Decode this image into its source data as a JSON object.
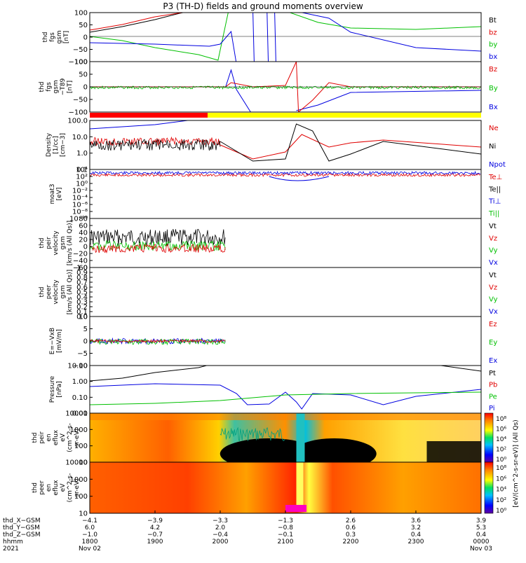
{
  "title": "P3 (TH-D) fields and ground moments overview",
  "colors": {
    "black": "#000000",
    "red": "#e00000",
    "green": "#00c000",
    "blue": "#0000e0",
    "yellow": "#ffff00",
    "bar_red": "#ff0000"
  },
  "panels": [
    {
      "id": "fgs-gsm",
      "ylabel": [
        "thd",
        "fgs",
        "gsm",
        "[nT]"
      ],
      "ticks": [
        "100",
        "50",
        "0",
        "−50",
        "−100"
      ],
      "legend": [
        {
          "label": "Bt",
          "color": "black"
        },
        {
          "label": "bz",
          "color": "red"
        },
        {
          "label": "by",
          "color": "green"
        },
        {
          "label": "bx",
          "color": "blue"
        }
      ]
    },
    {
      "id": "fgs-gsm-t89",
      "ylabel": [
        "thd",
        "fgs",
        "gsm",
        "−T89",
        "[nT]"
      ],
      "ticks": [
        "100",
        "50",
        "0",
        "−50",
        "−100"
      ],
      "legend": [
        {
          "label": "Bz",
          "color": "red"
        },
        {
          "label": "By",
          "color": "green"
        },
        {
          "label": "Bx",
          "color": "blue"
        }
      ]
    },
    {
      "id": "density",
      "ylabel": [
        "Density",
        "[1/cc]",
        "[cm−3]"
      ],
      "ticks": [
        "100.0",
        "10.0",
        "1.0",
        "0.1"
      ],
      "legend": [
        {
          "label": "Ne",
          "color": "red"
        },
        {
          "label": "Ni",
          "color": "black"
        },
        {
          "label": "Npot",
          "color": "blue"
        }
      ]
    },
    {
      "id": "temperature",
      "ylabel": [
        "moat3",
        "[eV]"
      ],
      "ticks": [
        "10⁴",
        "10²",
        "10⁰",
        "10⁻²",
        "10⁻⁴",
        "10⁻⁶",
        "10⁻⁸",
        "10⁻¹⁰"
      ],
      "legend": [
        {
          "label": "Te⊥",
          "color": "red"
        },
        {
          "label": "Te||",
          "color": "black"
        },
        {
          "label": "Ti⊥",
          "color": "blue"
        },
        {
          "label": "Ti||",
          "color": "green"
        }
      ]
    },
    {
      "id": "peir-velocity",
      "ylabel": [
        "thd",
        "peir",
        "velocity",
        "gsm",
        "[km/s (All Qs)]"
      ],
      "ticks": [
        "80",
        "60",
        "40",
        "20",
        "0",
        "−20",
        "−40",
        "−60"
      ],
      "legend": [
        {
          "label": "Vt",
          "color": "black"
        },
        {
          "label": "Vz",
          "color": "red"
        },
        {
          "label": "Vy",
          "color": "green"
        },
        {
          "label": "Vx",
          "color": "blue"
        }
      ]
    },
    {
      "id": "peer-velocity",
      "ylabel": [
        "thd",
        "peer",
        "velocity",
        "gsm",
        "[km/s (All Qs)]"
      ],
      "ticks": [
        "1.0",
        "0.9",
        "0.8",
        "0.7",
        "0.6",
        "0.5",
        "0.4",
        "0.3",
        "0.2",
        "0.1",
        "0.0"
      ],
      "legend": [
        {
          "label": "Vt",
          "color": "black"
        },
        {
          "label": "Vz",
          "color": "red"
        },
        {
          "label": "Vy",
          "color": "green"
        },
        {
          "label": "Vx",
          "color": "blue"
        }
      ]
    },
    {
      "id": "efield",
      "ylabel": [
        "E=−VxB",
        "[mV/m]"
      ],
      "ticks": [
        "10",
        "5",
        "0",
        "−5",
        "−10"
      ],
      "legend": [
        {
          "label": "Ez",
          "color": "red"
        },
        {
          "label": "Ey",
          "color": "green"
        },
        {
          "label": "Ex",
          "color": "blue"
        }
      ]
    },
    {
      "id": "pressure",
      "ylabel": [
        "Pressure",
        "[nPa]"
      ],
      "ticks": [
        "10.00",
        "1.00",
        "0.10",
        "0.01"
      ],
      "legend": [
        {
          "label": "Pt",
          "color": "black"
        },
        {
          "label": "Pb",
          "color": "red"
        },
        {
          "label": "Pe",
          "color": "green"
        },
        {
          "label": "Pi",
          "color": "blue"
        }
      ]
    },
    {
      "id": "peir-spec",
      "ylabel": [
        "thd",
        "peir",
        "en",
        "eflux",
        "eV",
        "(cm^2-s-",
        "sr-eV)"
      ],
      "ticks": [
        "10000",
        "1000",
        "100",
        "10"
      ]
    },
    {
      "id": "peer-spec",
      "ylabel": [
        "thd",
        "peer",
        "en",
        "eflux",
        "eV",
        "(cm^2-s-",
        "sr-eV)"
      ],
      "ticks": [
        "10000",
        "1000",
        "100",
        "10"
      ]
    }
  ],
  "colorbar": {
    "ticks": [
      "10⁸",
      "10⁶",
      "10⁴",
      "10²",
      "10⁰"
    ],
    "label": "[eV/(cm^2-s-sr-eV)] (All Qs)"
  },
  "xaxis": {
    "row_labels": [
      "thd_X−GSM",
      "thd_Y−GSM",
      "thd_Z−GSM",
      "hhmm",
      "2021"
    ],
    "columns": [
      {
        "values": [
          "−4.1",
          "6.0",
          "−1.0",
          "1800",
          "Nov 02"
        ]
      },
      {
        "values": [
          "−3.9",
          "4.2",
          "−0.7",
          "1900",
          ""
        ]
      },
      {
        "values": [
          "−3.3",
          "2.0",
          "−0.4",
          "2000",
          ""
        ]
      },
      {
        "values": [
          "−1.3",
          "−0.8",
          "−0.1",
          "2100",
          ""
        ]
      },
      {
        "values": [
          "2.6",
          "0.6",
          "0.3",
          "2200",
          ""
        ]
      },
      {
        "values": [
          "3.6",
          "3.2",
          "0.4",
          "2300",
          ""
        ]
      },
      {
        "values": [
          "3.9",
          "5.3",
          "0.4",
          "0000",
          "Nov 03"
        ]
      }
    ]
  },
  "chart_data": {
    "type": "line",
    "title": "P3 (TH-D) fields and ground moments overview",
    "x_times": [
      "1800",
      "1900",
      "2000",
      "2100",
      "2200",
      "2300",
      "0000"
    ],
    "date_start": "2021 Nov 02",
    "date_end": "Nov 03",
    "series": [
      {
        "name": "Bt",
        "panel": "fgs-gsm",
        "x": [
          1800,
          1830,
          1900,
          1930,
          1955
        ],
        "y": [
          40,
          55,
          80,
          100,
          100
        ]
      },
      {
        "name": "by",
        "panel": "fgs-gsm",
        "x": [
          1800,
          1830,
          1900,
          1930,
          1950,
          2010,
          2100,
          2200,
          2300,
          0
        ],
        "y": [
          25,
          5,
          -20,
          -45,
          -80,
          100,
          100,
          100,
          60,
          45
        ]
      },
      {
        "name": "bx",
        "panel": "fgs-gsm",
        "x": [
          1800,
          1900,
          1950,
          2010,
          2100,
          2200,
          2300,
          0
        ],
        "y": [
          -18,
          -25,
          -35,
          100,
          100,
          40,
          -10,
          -30
        ]
      },
      {
        "name": "Ne",
        "panel": "density",
        "x": [
          1800,
          1900,
          2000,
          2030,
          2100,
          2115,
          2200,
          2300,
          0
        ],
        "y": [
          0.9,
          1.0,
          1.3,
          0.15,
          0.3,
          6,
          1.2,
          2.5,
          1.3
        ]
      },
      {
        "name": "Ni",
        "panel": "density",
        "x": [
          1800,
          1900,
          2000,
          2030,
          2100,
          2115,
          2140,
          2200,
          2300,
          0
        ],
        "y": [
          1.0,
          1.1,
          4,
          0.1,
          0.2,
          80,
          0.1,
          0.5,
          1.0,
          0.3
        ]
      },
      {
        "name": "Pt",
        "panel": "pressure",
        "x": [
          1800,
          1900,
          2000
        ],
        "y": [
          2,
          6,
          20
        ]
      },
      {
        "name": "Pi",
        "panel": "pressure",
        "x": [
          1800,
          1900,
          2000,
          2030,
          2100,
          2115,
          2200,
          2230,
          0
        ],
        "y": [
          0.2,
          0.35,
          0.3,
          0.02,
          0.12,
          0.01,
          0.1,
          0.02,
          0.4
        ]
      },
      {
        "name": "Pe",
        "panel": "pressure",
        "x": [
          1800,
          1900,
          2000,
          2100,
          2200,
          0
        ],
        "y": [
          0.018,
          0.022,
          0.03,
          0.07,
          0.08,
          0.1
        ]
      }
    ]
  }
}
